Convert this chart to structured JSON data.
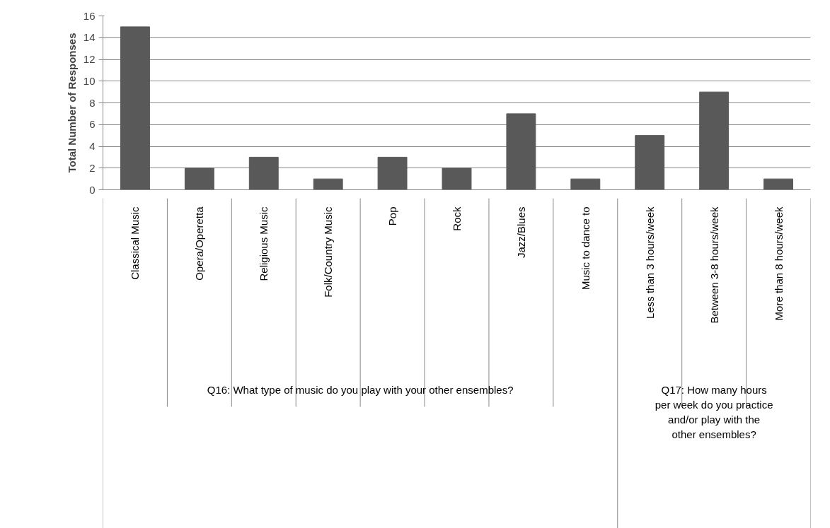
{
  "chart_data": {
    "type": "bar",
    "ylabel": "Total Number of Responses",
    "categories": [
      "Classical Music",
      "Opera/Operetta",
      "Religious Music",
      "Folk/Country Music",
      "Pop",
      "Rock",
      "Jazz/Blues",
      "Music to dance to",
      "Less than 3 hours/week",
      "Between 3-8 hours/week",
      "More than 8 hours/week"
    ],
    "values": [
      15,
      2,
      3,
      1,
      3,
      2,
      7,
      1,
      5,
      9,
      1
    ],
    "color": "#595959",
    "ylim": [
      0,
      16
    ],
    "yticks": [
      0,
      2,
      4,
      6,
      8,
      10,
      12,
      14,
      16
    ],
    "grid": "y",
    "annotations": [
      "Q16: What type of music do you play with your other ensembles?",
      "Q17: How many hours\nper week do you practice\nand/or play with the\nother ensembles?"
    ]
  }
}
